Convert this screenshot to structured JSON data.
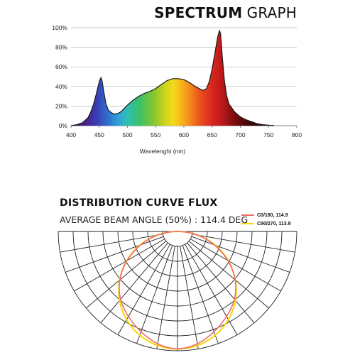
{
  "header": {
    "title_bold": "SPECTRUM",
    "title_light": "GRAPH"
  },
  "colors": {
    "spectrum_outline": "#1a1a1a",
    "grid": "#b5b5b5",
    "c0_180": "#f26b6b",
    "c90_270": "#f5d800"
  },
  "chart_data": [
    {
      "type": "area",
      "xlabel": "Wavelenght (nm)",
      "ylabel": "",
      "xlim": [
        400,
        800
      ],
      "ylim": [
        0,
        100
      ],
      "x_ticks": [
        "400",
        "450",
        "500",
        "550",
        "600",
        "650",
        "700",
        "750",
        "800"
      ],
      "y_ticks": [
        "0%",
        "20%",
        "40%",
        "60%",
        "80%",
        "100%"
      ],
      "grid": true,
      "fill": "visible-spectrum gradient by wavelength",
      "series": [
        {
          "x": [
            400,
            410,
            420,
            430,
            435,
            440,
            445,
            450,
            453,
            455,
            458,
            462,
            466,
            470,
            475,
            480,
            485,
            490,
            495,
            500,
            510,
            520,
            530,
            540,
            550,
            560,
            570,
            580,
            590,
            600,
            610,
            620,
            630,
            635,
            640,
            645,
            650,
            655,
            660,
            663,
            665,
            668,
            672,
            676,
            680,
            690,
            700,
            710,
            720,
            730,
            740,
            750,
            760
          ],
          "y": [
            0,
            1,
            3,
            8,
            14,
            22,
            33,
            45,
            49,
            46,
            35,
            22,
            16,
            14,
            12,
            12,
            13,
            15,
            18,
            21,
            26,
            30,
            33,
            35,
            38,
            42,
            46,
            48,
            48,
            47,
            44,
            40,
            37,
            36,
            38,
            45,
            58,
            74,
            91,
            97,
            94,
            70,
            45,
            30,
            22,
            14,
            9,
            6,
            4,
            2,
            1,
            0.5,
            0
          ]
        }
      ]
    },
    {
      "type": "polar",
      "title": "DISTRIBUTION CURVE FLUX",
      "subtitle": "AVERAGE BEAM ANGLE  (50%) : 114.4 DEG",
      "grid": true,
      "legend_position": "top-right",
      "series": [
        {
          "name": "C0/180, 114.9",
          "color": "#f26b6b",
          "beam_angle_deg": 114.9
        },
        {
          "name": "C90/270, 113.9",
          "color": "#f5d800",
          "beam_angle_deg": 113.9
        }
      ]
    }
  ]
}
